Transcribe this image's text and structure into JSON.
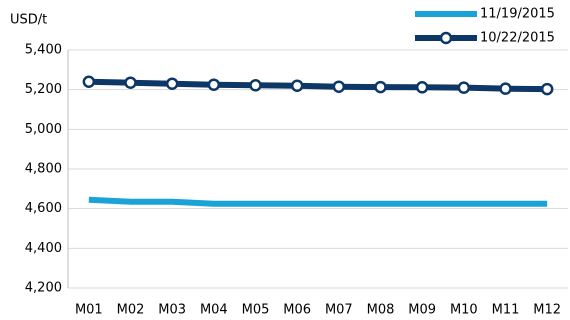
{
  "chart_data": {
    "type": "line",
    "y_label": "USD/t",
    "categories": [
      "M01",
      "M02",
      "M03",
      "M04",
      "M05",
      "M06",
      "M07",
      "M08",
      "M09",
      "M10",
      "M11",
      "M12"
    ],
    "series": [
      {
        "name": "11/19/2015",
        "color": "#1aa3d8",
        "marker": false,
        "values": [
          4645,
          4635,
          4635,
          4625,
          4625,
          4625,
          4625,
          4625,
          4625,
          4625,
          4625,
          4625
        ]
      },
      {
        "name": "10/22/2015",
        "color": "#0c3766",
        "marker": true,
        "values": [
          5240,
          5235,
          5230,
          5225,
          5222,
          5220,
          5215,
          5213,
          5212,
          5210,
          5205,
          5203
        ]
      }
    ],
    "ylim": [
      4200,
      5400
    ],
    "yticks": [
      {
        "value": 4200,
        "label": "4,200"
      },
      {
        "value": 4400,
        "label": "4,400"
      },
      {
        "value": 4600,
        "label": "4,600"
      },
      {
        "value": 4800,
        "label": "4,800"
      },
      {
        "value": 5000,
        "label": "5,000"
      },
      {
        "value": 5200,
        "label": "5,200"
      },
      {
        "value": 5400,
        "label": "5,400"
      }
    ],
    "grid": true,
    "legend": "top-right"
  }
}
